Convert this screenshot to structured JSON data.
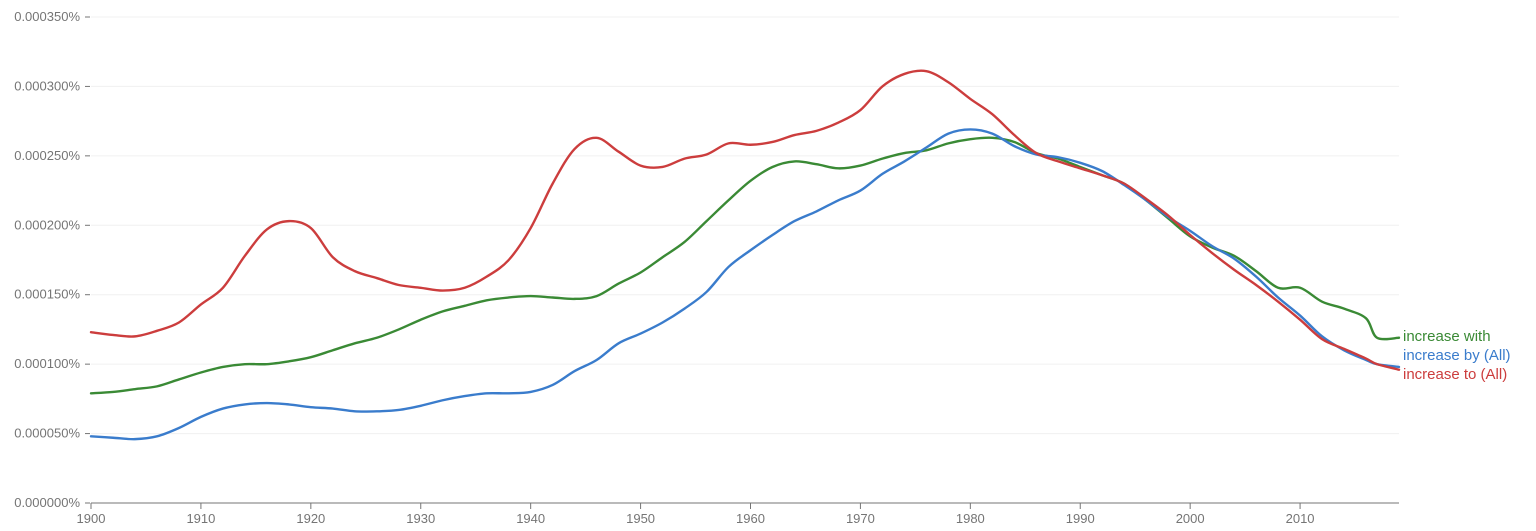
{
  "chart_data": {
    "type": "line",
    "title": "",
    "xlabel": "",
    "ylabel": "",
    "xlim": [
      1900,
      2019
    ],
    "ylim": [
      0,
      0.00035
    ],
    "grid": true,
    "legend": "right-end labels",
    "y_ticks": [
      {
        "value": 0.0,
        "label": "0.000000%"
      },
      {
        "value": 5e-05,
        "label": "0.000050%"
      },
      {
        "value": 0.0001,
        "label": "0.000100%"
      },
      {
        "value": 0.00015,
        "label": "0.000150%"
      },
      {
        "value": 0.0002,
        "label": "0.000200%"
      },
      {
        "value": 0.00025,
        "label": "0.000250%"
      },
      {
        "value": 0.0003,
        "label": "0.000300%"
      },
      {
        "value": 0.00035,
        "label": "0.000350%"
      }
    ],
    "x_ticks": [
      {
        "value": 1900,
        "label": "1900"
      },
      {
        "value": 1910,
        "label": "1910"
      },
      {
        "value": 1920,
        "label": "1920"
      },
      {
        "value": 1930,
        "label": "1930"
      },
      {
        "value": 1940,
        "label": "1940"
      },
      {
        "value": 1950,
        "label": "1950"
      },
      {
        "value": 1960,
        "label": "1960"
      },
      {
        "value": 1970,
        "label": "1970"
      },
      {
        "value": 1980,
        "label": "1980"
      },
      {
        "value": 1990,
        "label": "1990"
      },
      {
        "value": 2000,
        "label": "2000"
      },
      {
        "value": 2010,
        "label": "2010"
      }
    ],
    "series": [
      {
        "name": "increase with",
        "color": "#3a8a35",
        "x": [
          1900,
          1902,
          1904,
          1906,
          1908,
          1910,
          1912,
          1914,
          1916,
          1918,
          1920,
          1922,
          1924,
          1926,
          1928,
          1930,
          1932,
          1934,
          1936,
          1938,
          1940,
          1942,
          1944,
          1946,
          1948,
          1950,
          1952,
          1954,
          1956,
          1958,
          1960,
          1962,
          1964,
          1966,
          1968,
          1970,
          1972,
          1974,
          1976,
          1978,
          1980,
          1982,
          1984,
          1986,
          1988,
          1990,
          1992,
          1994,
          1996,
          1998,
          2000,
          2002,
          2004,
          2006,
          2008,
          2010,
          2012,
          2014,
          2016,
          2017,
          2019
        ],
        "values": [
          7.9e-05,
          8e-05,
          8.2e-05,
          8.4e-05,
          8.9e-05,
          9.4e-05,
          9.8e-05,
          0.0001,
          0.0001,
          0.000102,
          0.000105,
          0.00011,
          0.000115,
          0.000119,
          0.000125,
          0.000132,
          0.000138,
          0.000142,
          0.000146,
          0.000148,
          0.000149,
          0.000148,
          0.000147,
          0.000149,
          0.000158,
          0.000166,
          0.000177,
          0.000188,
          0.000203,
          0.000218,
          0.000232,
          0.000242,
          0.000246,
          0.000244,
          0.000241,
          0.000243,
          0.000248,
          0.000252,
          0.000254,
          0.000259,
          0.000262,
          0.000263,
          0.00026,
          0.000252,
          0.000248,
          0.000242,
          0.000236,
          0.00023,
          0.000218,
          0.000205,
          0.000192,
          0.000184,
          0.000178,
          0.000167,
          0.000155,
          0.000155,
          0.000145,
          0.00014,
          0.000133,
          0.000119,
          0.000119
        ]
      },
      {
        "name": "increase by (All)",
        "color": "#3a7ccc",
        "x": [
          1900,
          1902,
          1904,
          1906,
          1908,
          1910,
          1912,
          1914,
          1916,
          1918,
          1920,
          1922,
          1924,
          1926,
          1928,
          1930,
          1932,
          1934,
          1936,
          1938,
          1940,
          1942,
          1944,
          1946,
          1948,
          1950,
          1952,
          1954,
          1956,
          1958,
          1960,
          1962,
          1964,
          1966,
          1968,
          1970,
          1972,
          1974,
          1976,
          1978,
          1980,
          1982,
          1984,
          1986,
          1988,
          1990,
          1992,
          1994,
          1996,
          1998,
          2000,
          2002,
          2004,
          2006,
          2008,
          2010,
          2012,
          2014,
          2016,
          2017,
          2019
        ],
        "values": [
          4.8e-05,
          4.7e-05,
          4.6e-05,
          4.8e-05,
          5.4e-05,
          6.2e-05,
          6.8e-05,
          7.1e-05,
          7.2e-05,
          7.1e-05,
          6.9e-05,
          6.8e-05,
          6.6e-05,
          6.6e-05,
          6.7e-05,
          7e-05,
          7.4e-05,
          7.7e-05,
          7.9e-05,
          7.9e-05,
          8e-05,
          8.5e-05,
          9.5e-05,
          0.000103,
          0.000115,
          0.000122,
          0.00013,
          0.00014,
          0.000152,
          0.00017,
          0.000182,
          0.000193,
          0.000203,
          0.00021,
          0.000218,
          0.000225,
          0.000237,
          0.000246,
          0.000256,
          0.000266,
          0.000269,
          0.000266,
          0.000257,
          0.000251,
          0.000249,
          0.000245,
          0.000239,
          0.000229,
          0.000218,
          0.000206,
          0.000196,
          0.000185,
          0.000176,
          0.000163,
          0.000148,
          0.000135,
          0.00012,
          0.00011,
          0.000103,
          0.0001,
          9.8e-05
        ]
      },
      {
        "name": "increase to (All)",
        "color": "#cc3d3d",
        "x": [
          1900,
          1902,
          1904,
          1906,
          1908,
          1910,
          1912,
          1914,
          1916,
          1918,
          1920,
          1922,
          1924,
          1926,
          1928,
          1930,
          1932,
          1934,
          1936,
          1938,
          1940,
          1942,
          1944,
          1946,
          1948,
          1950,
          1952,
          1954,
          1956,
          1958,
          1960,
          1962,
          1964,
          1966,
          1968,
          1970,
          1972,
          1974,
          1976,
          1978,
          1980,
          1982,
          1984,
          1986,
          1988,
          1990,
          1992,
          1994,
          1996,
          1998,
          2000,
          2002,
          2004,
          2006,
          2008,
          2010,
          2012,
          2014,
          2016,
          2017,
          2019
        ],
        "values": [
          0.000123,
          0.000121,
          0.00012,
          0.000124,
          0.00013,
          0.000143,
          0.000155,
          0.000178,
          0.000197,
          0.000203,
          0.000198,
          0.000177,
          0.000167,
          0.000162,
          0.000157,
          0.000155,
          0.000153,
          0.000155,
          0.000163,
          0.000175,
          0.000198,
          0.00023,
          0.000255,
          0.000263,
          0.000253,
          0.000243,
          0.000242,
          0.000248,
          0.000251,
          0.000259,
          0.000258,
          0.00026,
          0.000265,
          0.000268,
          0.000274,
          0.000283,
          0.0003,
          0.000309,
          0.000311,
          0.000303,
          0.000291,
          0.00028,
          0.000265,
          0.000252,
          0.000246,
          0.000241,
          0.000236,
          0.00023,
          0.000219,
          0.000207,
          0.000193,
          0.00018,
          0.000168,
          0.000157,
          0.000145,
          0.000132,
          0.000118,
          0.000111,
          0.000104,
          0.0001,
          9.6e-05
        ]
      }
    ]
  }
}
